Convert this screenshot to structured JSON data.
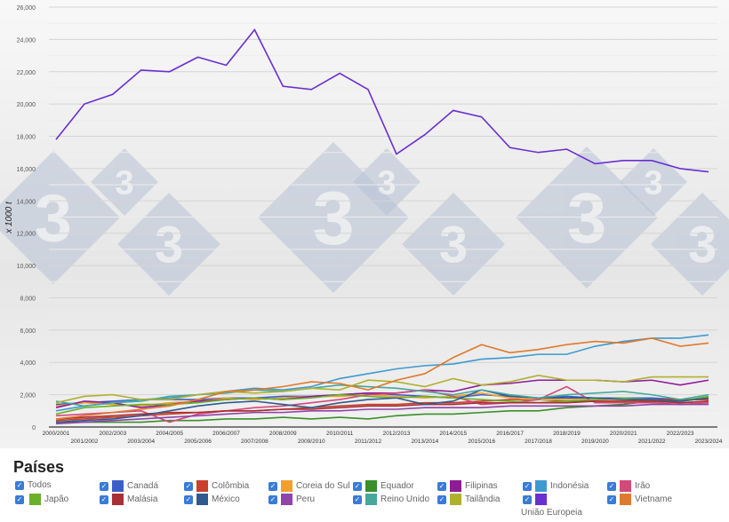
{
  "chart_data": {
    "type": "line",
    "ylabel": "x 1000 t",
    "ylim": [
      0,
      26000
    ],
    "yticks": [
      "0",
      "2,000",
      "4,000",
      "6,000",
      "8,000",
      "10,000",
      "12,000",
      "14,000",
      "16,000",
      "18,000",
      "20,000",
      "22,000",
      "24,000",
      "26,000"
    ],
    "grid": true,
    "categories": [
      "2000/2001",
      "2001/2002",
      "2002/2003",
      "2003/2004",
      "2004/2005",
      "2005/2006",
      "2006/2007",
      "2007/2008",
      "2008/2009",
      "2009/2010",
      "2010/2011",
      "2011/2012",
      "2012/2013",
      "2013/2014",
      "2014/2015",
      "2015/2016",
      "2016/2017",
      "2017/2018",
      "2018/2019",
      "2019/2020",
      "2020/2021",
      "2021/2022",
      "2022/2023",
      "2023/2024"
    ],
    "series": [
      {
        "name": "Canadá",
        "color": "#3b5fc9",
        "values": [
          1400,
          1500,
          1600,
          1700,
          1700,
          1700,
          1800,
          1800,
          1900,
          1900,
          2000,
          2100,
          2000,
          1900,
          1800,
          2000,
          1900,
          1800,
          1900,
          1800,
          1800,
          1800,
          1700,
          1700
        ]
      },
      {
        "name": "Colômbia",
        "color": "#c9412a",
        "values": [
          400,
          500,
          600,
          700,
          800,
          900,
          1000,
          1000,
          1100,
          1200,
          1300,
          1400,
          1400,
          1500,
          1500,
          1600,
          1700,
          1700,
          1600,
          1600,
          1600,
          1700,
          1700,
          1700
        ]
      },
      {
        "name": "Coreia do Sul",
        "color": "#f0a030",
        "values": [
          1300,
          1500,
          1400,
          1300,
          1500,
          1600,
          1800,
          1700,
          1800,
          1900,
          1900,
          2000,
          1900,
          1800,
          1900,
          2100,
          1800,
          1700,
          1700,
          1700,
          1600,
          1600,
          1500,
          1600
        ]
      },
      {
        "name": "Equador",
        "color": "#3a8f2a",
        "values": [
          300,
          300,
          300,
          300,
          400,
          400,
          500,
          500,
          600,
          500,
          600,
          500,
          700,
          800,
          800,
          900,
          1000,
          1000,
          1200,
          1300,
          1400,
          1600,
          1600,
          1800
        ]
      },
      {
        "name": "Filipinas",
        "color": "#8e1b9a",
        "values": [
          1200,
          1600,
          1500,
          1200,
          1400,
          1600,
          1700,
          1800,
          1700,
          1900,
          2000,
          2100,
          2100,
          2300,
          2200,
          2600,
          2700,
          2900,
          2900,
          2900,
          2800,
          2900,
          2600,
          2900
        ]
      },
      {
        "name": "Indonésia",
        "color": "#3d9ad0",
        "values": [
          1000,
          1300,
          1500,
          1700,
          1800,
          2000,
          2200,
          2400,
          2300,
          2500,
          3000,
          3300,
          3600,
          3800,
          3900,
          4200,
          4300,
          4500,
          4500,
          5000,
          5300,
          5500,
          5500,
          5700
        ]
      },
      {
        "name": "Irão",
        "color": "#d4487a",
        "values": [
          700,
          800,
          900,
          1000,
          300,
          800,
          1000,
          1200,
          1300,
          1500,
          1700,
          2000,
          2100,
          2300,
          1900,
          1400,
          1500,
          1700,
          2500,
          1500,
          1500,
          1500,
          1400,
          1500
        ]
      },
      {
        "name": "Japão",
        "color": "#6ab02a",
        "values": [
          800,
          1200,
          1300,
          1400,
          1400,
          1500,
          1700,
          1800,
          1700,
          1800,
          2000,
          1900,
          1800,
          1900,
          1800,
          1700,
          1600,
          1500,
          1600,
          1700,
          1800,
          1700,
          1600,
          1900
        ]
      },
      {
        "name": "Malásia",
        "color": "#a82f35",
        "values": [
          500,
          600,
          700,
          800,
          900,
          900,
          1000,
          1000,
          1100,
          1100,
          1200,
          1300,
          1300,
          1400,
          1400,
          1500,
          1500,
          1500,
          1500,
          1600,
          1600,
          1600,
          1500,
          1600
        ]
      },
      {
        "name": "México",
        "color": "#2f5a8f",
        "values": [
          300,
          400,
          500,
          700,
          1000,
          1300,
          1500,
          1600,
          1400,
          1200,
          1500,
          1700,
          1800,
          1400,
          1600,
          2300,
          1900,
          1800,
          1800,
          1800,
          1700,
          1700,
          1600,
          1800
        ]
      },
      {
        "name": "Peru",
        "color": "#8e44a8",
        "values": [
          200,
          300,
          400,
          500,
          600,
          700,
          800,
          900,
          900,
          1000,
          1000,
          1100,
          1100,
          1200,
          1200,
          1200,
          1300,
          1300,
          1300,
          1300,
          1300,
          1400,
          1400,
          1400
        ]
      },
      {
        "name": "Reino Unido",
        "color": "#45a89a",
        "values": [
          1600,
          1300,
          1500,
          1600,
          1900,
          2000,
          2100,
          2300,
          2200,
          2400,
          2600,
          2500,
          2400,
          2200,
          2000,
          2300,
          2000,
          1800,
          2000,
          2100,
          2200,
          2000,
          1700,
          2000
        ]
      },
      {
        "name": "Tailândia",
        "color": "#b0b030",
        "values": [
          1500,
          1900,
          2000,
          1700,
          1700,
          2000,
          2200,
          2100,
          2200,
          2400,
          2300,
          2900,
          2800,
          2500,
          3000,
          2600,
          2800,
          3200,
          2900,
          2900,
          2800,
          3100,
          3100,
          3100
        ]
      },
      {
        "name": "União Europeia",
        "color": "#6a2fd0",
        "values": [
          17800,
          20000,
          20600,
          22100,
          22000,
          22900,
          22400,
          24600,
          21100,
          20900,
          21900,
          20900,
          16900,
          18100,
          19600,
          19200,
          17300,
          17000,
          17200,
          16300,
          16500,
          16500,
          16000,
          15800
        ]
      },
      {
        "name": "Vietname",
        "color": "#e07a2a",
        "values": [
          500,
          700,
          900,
          1100,
          1300,
          1700,
          2200,
          2300,
          2500,
          2800,
          2700,
          2300,
          2900,
          3300,
          4300,
          5100,
          4600,
          4800,
          5100,
          5300,
          5200,
          5500,
          5000,
          5200
        ]
      }
    ],
    "legend_placement": "bottom"
  },
  "legend": {
    "title": "Países",
    "all_label": "Todos",
    "watermark": "3"
  }
}
